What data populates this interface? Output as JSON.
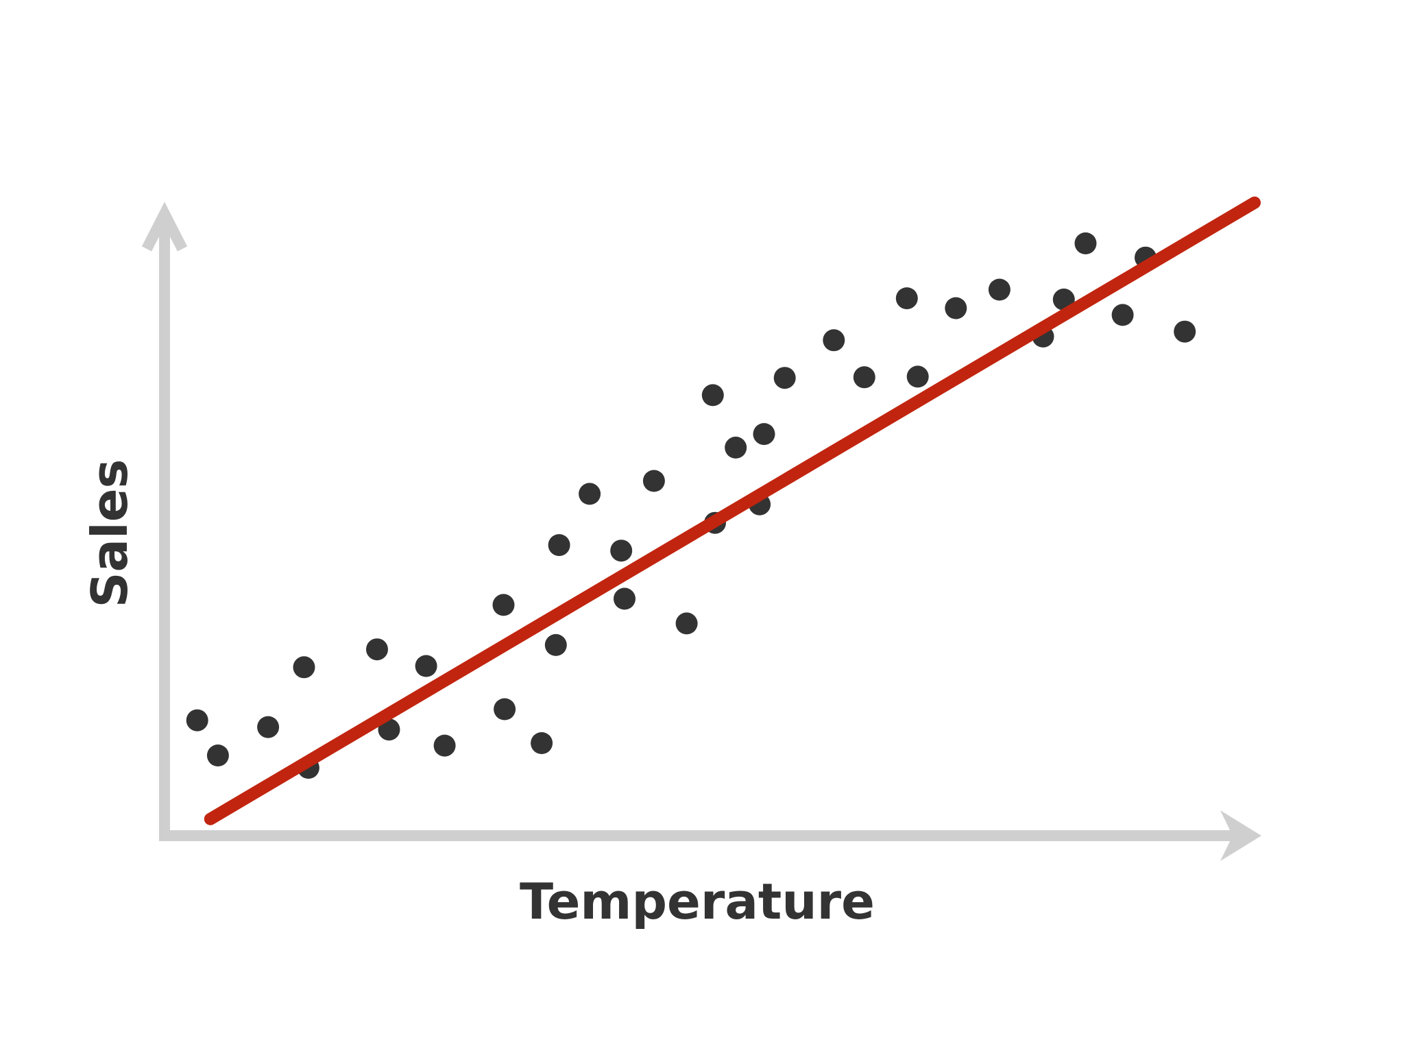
{
  "chart_data": {
    "type": "scatter",
    "title": "",
    "xlabel": "Temperature",
    "ylabel": "Sales",
    "xlim": [
      0,
      100
    ],
    "ylim": [
      0,
      100
    ],
    "grid": false,
    "legend": "none",
    "ticks": "none",
    "colors": {
      "axis": "#d0cfd0",
      "points": "#333333",
      "trend_line": "#c1250f",
      "label": "#333333",
      "background": "#ffffff"
    },
    "series": [
      {
        "name": "",
        "kind": "points",
        "points": [
          {
            "x": 3.0,
            "y": 17.7
          },
          {
            "x": 4.9,
            "y": 12.0
          },
          {
            "x": 9.5,
            "y": 16.6
          },
          {
            "x": 12.8,
            "y": 26.3
          },
          {
            "x": 13.2,
            "y": 10.0
          },
          {
            "x": 19.5,
            "y": 29.2
          },
          {
            "x": 20.6,
            "y": 16.2
          },
          {
            "x": 24.0,
            "y": 26.5
          },
          {
            "x": 25.7,
            "y": 13.6
          },
          {
            "x": 31.1,
            "y": 36.4
          },
          {
            "x": 31.2,
            "y": 19.5
          },
          {
            "x": 34.6,
            "y": 14.0
          },
          {
            "x": 35.9,
            "y": 29.9
          },
          {
            "x": 36.2,
            "y": 46.1
          },
          {
            "x": 39.0,
            "y": 54.4
          },
          {
            "x": 41.9,
            "y": 45.2
          },
          {
            "x": 42.2,
            "y": 37.4
          },
          {
            "x": 44.9,
            "y": 56.5
          },
          {
            "x": 47.9,
            "y": 33.4
          },
          {
            "x": 50.3,
            "y": 70.4
          },
          {
            "x": 50.5,
            "y": 49.7
          },
          {
            "x": 52.4,
            "y": 61.9
          },
          {
            "x": 54.6,
            "y": 52.7
          },
          {
            "x": 55.0,
            "y": 64.1
          },
          {
            "x": 56.9,
            "y": 73.2
          },
          {
            "x": 61.4,
            "y": 79.3
          },
          {
            "x": 64.2,
            "y": 73.3
          },
          {
            "x": 68.1,
            "y": 86.1
          },
          {
            "x": 69.1,
            "y": 73.4
          },
          {
            "x": 72.6,
            "y": 84.5
          },
          {
            "x": 76.6,
            "y": 87.5
          },
          {
            "x": 80.6,
            "y": 79.9
          },
          {
            "x": 82.5,
            "y": 85.9
          },
          {
            "x": 84.5,
            "y": 95.0
          },
          {
            "x": 87.9,
            "y": 83.4
          },
          {
            "x": 90.0,
            "y": 92.7
          },
          {
            "x": 93.6,
            "y": 80.7
          }
        ]
      },
      {
        "name": "",
        "kind": "trend_line",
        "points": [
          {
            "x": 4.2,
            "y": 1.7
          },
          {
            "x": 100.0,
            "y": 101.6
          }
        ]
      }
    ]
  }
}
